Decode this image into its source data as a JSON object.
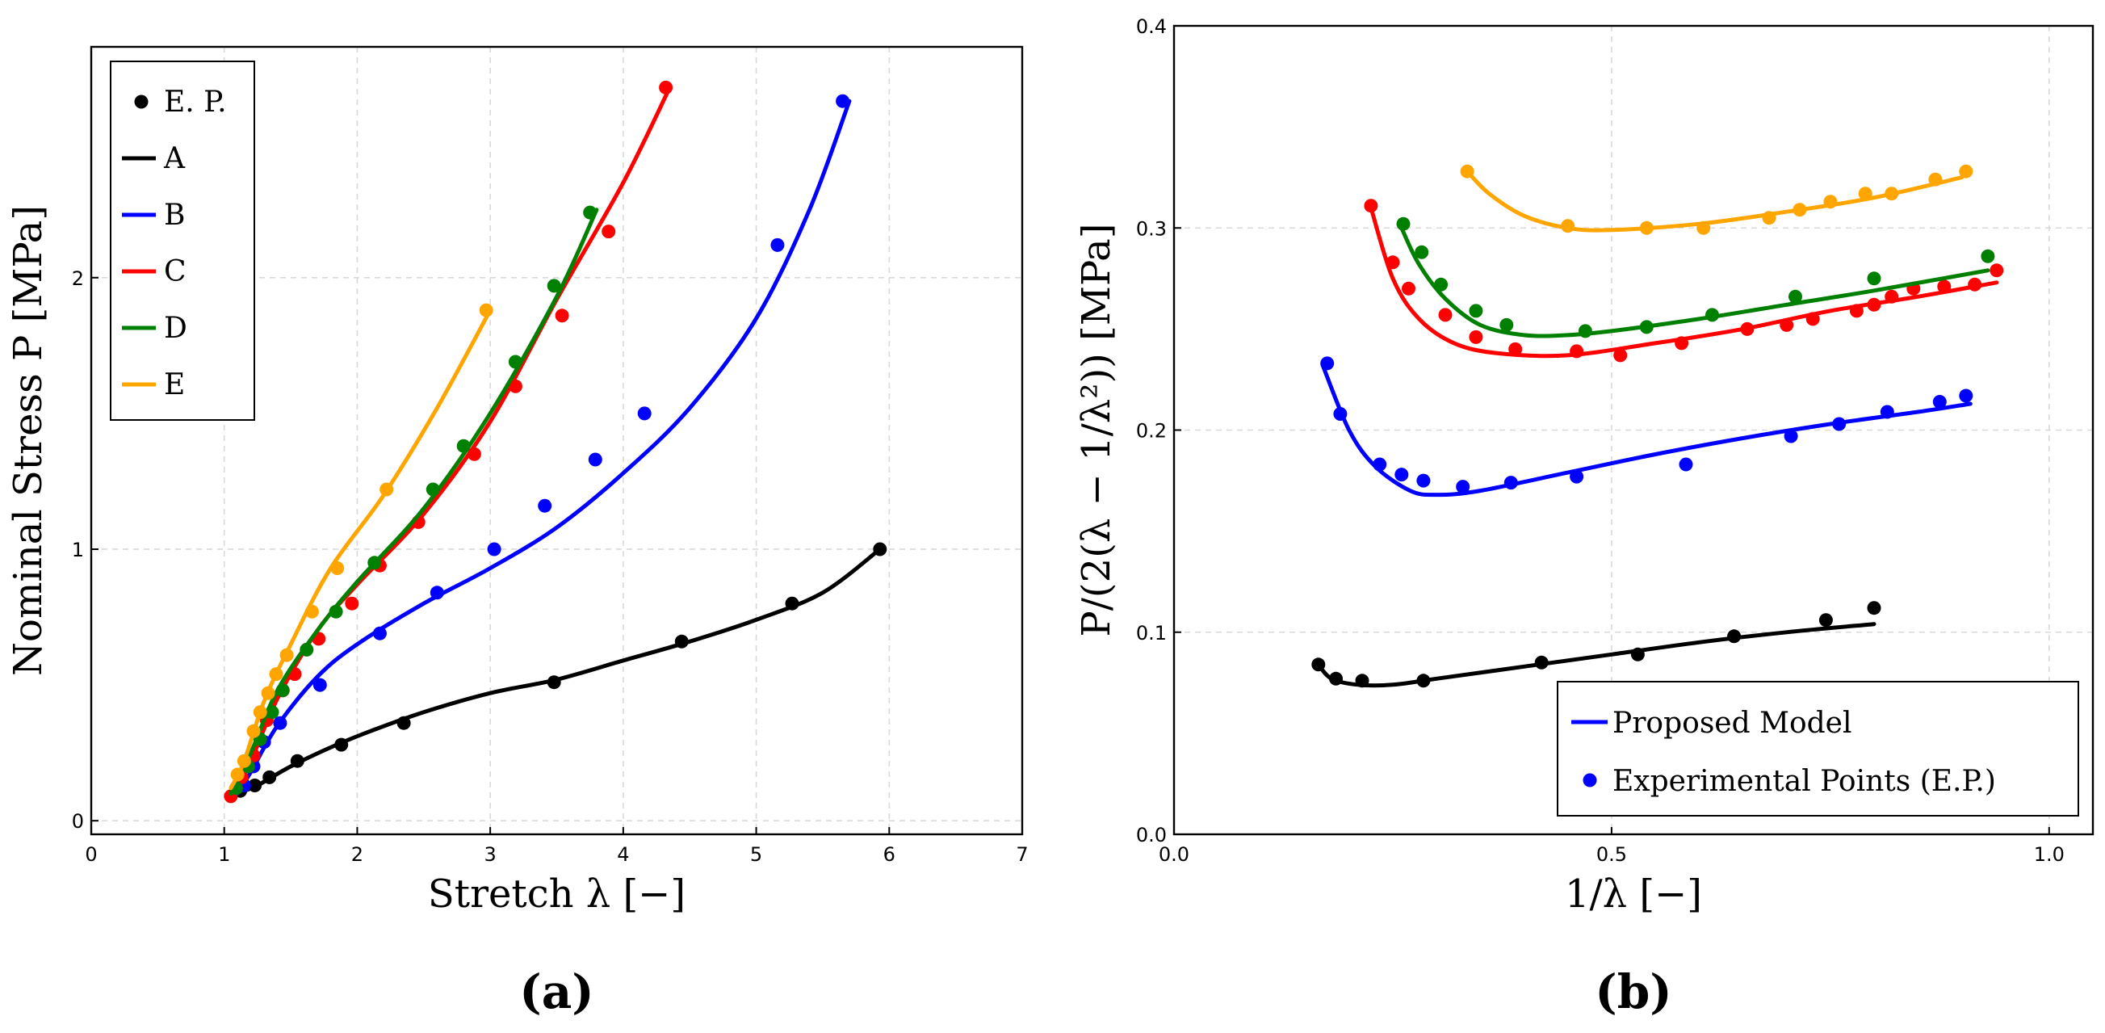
{
  "chart_data": [
    {
      "id": "a",
      "type": "line",
      "subtitle": "(a)",
      "xlabel": "Stretch λ [−]",
      "ylabel": "Nominal Stress P [MPa]",
      "xlim": [
        0,
        7
      ],
      "ylim": [
        -0.05,
        2.85
      ],
      "xticks": [
        0,
        1,
        2,
        3,
        4,
        5,
        6,
        7
      ],
      "xtick_labels": [
        "0",
        "1",
        "2",
        "3",
        "4",
        "5",
        "6",
        "7"
      ],
      "yticks": [
        0,
        1,
        2
      ],
      "ytick_labels": [
        "0",
        "1",
        "2"
      ],
      "grid": true,
      "legend_position": "top-left",
      "legend": [
        {
          "label": "E. P.",
          "kind": "marker",
          "color": "#000000"
        },
        {
          "label": "A",
          "kind": "line",
          "color": "#000000"
        },
        {
          "label": "B",
          "kind": "line",
          "color": "#0000ff"
        },
        {
          "label": "C",
          "kind": "line",
          "color": "#ff0000"
        },
        {
          "label": "D",
          "kind": "line",
          "color": "#008000"
        },
        {
          "label": "E",
          "kind": "line",
          "color": "#ffa500"
        }
      ],
      "series": [
        {
          "name": "A",
          "color": "#000000",
          "model": [
            [
              1.15,
              0.11
            ],
            [
              1.25,
              0.13
            ],
            [
              1.5,
              0.2
            ],
            [
              1.8,
              0.27
            ],
            [
              2.1,
              0.33
            ],
            [
              2.5,
              0.4
            ],
            [
              3,
              0.47
            ],
            [
              3.5,
              0.52
            ],
            [
              4,
              0.59
            ],
            [
              4.5,
              0.66
            ],
            [
              5,
              0.74
            ],
            [
              5.5,
              0.84
            ],
            [
              5.93,
              1.0
            ]
          ],
          "points": [
            [
              1.12,
              0.11
            ],
            [
              1.23,
              0.13
            ],
            [
              1.34,
              0.16
            ],
            [
              1.55,
              0.22
            ],
            [
              1.88,
              0.28
            ],
            [
              2.35,
              0.36
            ],
            [
              3.48,
              0.51
            ],
            [
              4.44,
              0.66
            ],
            [
              5.27,
              0.8
            ],
            [
              5.93,
              1.0
            ]
          ]
        },
        {
          "name": "B",
          "color": "#0000ff",
          "model": [
            [
              1.1,
              0.1
            ],
            [
              1.2,
              0.18
            ],
            [
              1.4,
              0.35
            ],
            [
              1.7,
              0.53
            ],
            [
              2,
              0.65
            ],
            [
              2.5,
              0.8
            ],
            [
              3,
              0.93
            ],
            [
              3.5,
              1.08
            ],
            [
              4,
              1.28
            ],
            [
              4.5,
              1.52
            ],
            [
              5,
              1.85
            ],
            [
              5.4,
              2.25
            ],
            [
              5.7,
              2.65
            ]
          ],
          "points": [
            [
              1.15,
              0.13
            ],
            [
              1.22,
              0.2
            ],
            [
              1.3,
              0.29
            ],
            [
              1.42,
              0.36
            ],
            [
              1.72,
              0.5
            ],
            [
              2.17,
              0.69
            ],
            [
              2.6,
              0.84
            ],
            [
              3.03,
              1.0
            ],
            [
              3.41,
              1.16
            ],
            [
              3.79,
              1.33
            ],
            [
              4.16,
              1.5
            ],
            [
              5.16,
              2.12
            ],
            [
              5.65,
              2.65
            ]
          ]
        },
        {
          "name": "C",
          "color": "#ff0000",
          "model": [
            [
              1.05,
              0.09
            ],
            [
              1.2,
              0.22
            ],
            [
              1.4,
              0.45
            ],
            [
              1.7,
              0.7
            ],
            [
              2,
              0.87
            ],
            [
              2.5,
              1.13
            ],
            [
              3,
              1.47
            ],
            [
              3.5,
              1.92
            ],
            [
              4,
              2.35
            ],
            [
              4.35,
              2.7
            ]
          ],
          "points": [
            [
              1.05,
              0.09
            ],
            [
              1.13,
              0.16
            ],
            [
              1.22,
              0.24
            ],
            [
              1.32,
              0.37
            ],
            [
              1.44,
              0.48
            ],
            [
              1.53,
              0.54
            ],
            [
              1.71,
              0.67
            ],
            [
              1.96,
              0.8
            ],
            [
              2.17,
              0.94
            ],
            [
              2.46,
              1.1
            ],
            [
              2.88,
              1.35
            ],
            [
              3.19,
              1.6
            ],
            [
              3.54,
              1.86
            ],
            [
              3.89,
              2.17
            ],
            [
              4.32,
              2.7
            ]
          ]
        },
        {
          "name": "D",
          "color": "#008000",
          "model": [
            [
              1.05,
              0.1
            ],
            [
              1.2,
              0.25
            ],
            [
              1.4,
              0.48
            ],
            [
              1.7,
              0.7
            ],
            [
              2,
              0.88
            ],
            [
              2.5,
              1.15
            ],
            [
              3,
              1.5
            ],
            [
              3.5,
              1.93
            ],
            [
              3.8,
              2.25
            ]
          ],
          "points": [
            [
              1.09,
              0.12
            ],
            [
              1.18,
              0.2
            ],
            [
              1.27,
              0.3
            ],
            [
              1.36,
              0.4
            ],
            [
              1.44,
              0.48
            ],
            [
              1.62,
              0.63
            ],
            [
              1.84,
              0.77
            ],
            [
              2.13,
              0.95
            ],
            [
              2.57,
              1.22
            ],
            [
              2.8,
              1.38
            ],
            [
              3.19,
              1.69
            ],
            [
              3.48,
              1.97
            ],
            [
              3.75,
              2.24
            ]
          ]
        },
        {
          "name": "E",
          "color": "#ffa500",
          "model": [
            [
              1.05,
              0.12
            ],
            [
              1.15,
              0.22
            ],
            [
              1.3,
              0.44
            ],
            [
              1.5,
              0.65
            ],
            [
              1.8,
              0.93
            ],
            [
              2.2,
              1.2
            ],
            [
              2.6,
              1.52
            ],
            [
              3,
              1.88
            ]
          ],
          "points": [
            [
              1.1,
              0.17
            ],
            [
              1.15,
              0.22
            ],
            [
              1.22,
              0.33
            ],
            [
              1.27,
              0.4
            ],
            [
              1.33,
              0.47
            ],
            [
              1.39,
              0.54
            ],
            [
              1.47,
              0.61
            ],
            [
              1.66,
              0.77
            ],
            [
              1.85,
              0.93
            ],
            [
              2.22,
              1.22
            ],
            [
              2.97,
              1.88
            ]
          ]
        }
      ]
    },
    {
      "id": "b",
      "type": "line",
      "subtitle": "(b)",
      "xlabel": "1/λ [−]",
      "ylabel": "P/(2(λ − 1/λ²)) [MPa]",
      "xlim": [
        0,
        1.05
      ],
      "ylim": [
        0,
        0.4
      ],
      "xticks": [
        0,
        0.5,
        1.0
      ],
      "xtick_labels": [
        "0.0",
        "0.5",
        "1.0"
      ],
      "yticks": [
        0,
        0.1,
        0.2,
        0.3,
        0.4
      ],
      "ytick_labels": [
        "0.0",
        "0.1",
        "0.2",
        "0.3",
        "0.4"
      ],
      "grid": true,
      "legend_position": "bottom-right",
      "legend": [
        {
          "label": "Proposed Model",
          "kind": "line",
          "color": "#0000ff"
        },
        {
          "label": "Experimental Points (E.P.)",
          "kind": "marker",
          "color": "#0000ff"
        }
      ],
      "series": [
        {
          "name": "A",
          "color": "#000000",
          "model": [
            [
              0.165,
              0.084
            ],
            [
              0.18,
              0.077
            ],
            [
              0.21,
              0.074
            ],
            [
              0.25,
              0.074
            ],
            [
              0.3,
              0.077
            ],
            [
              0.4,
              0.083
            ],
            [
              0.5,
              0.089
            ],
            [
              0.6,
              0.095
            ],
            [
              0.7,
              0.1
            ],
            [
              0.8,
              0.104
            ]
          ],
          "points": [
            [
              0.165,
              0.084
            ],
            [
              0.185,
              0.077
            ],
            [
              0.215,
              0.076
            ],
            [
              0.285,
              0.076
            ],
            [
              0.42,
              0.085
            ],
            [
              0.53,
              0.089
            ],
            [
              0.64,
              0.098
            ],
            [
              0.745,
              0.106
            ],
            [
              0.8,
              0.112
            ]
          ]
        },
        {
          "name": "B",
          "color": "#0000ff",
          "model": [
            [
              0.17,
              0.232
            ],
            [
              0.2,
              0.2
            ],
            [
              0.23,
              0.182
            ],
            [
              0.27,
              0.17
            ],
            [
              0.3,
              0.168
            ],
            [
              0.35,
              0.17
            ],
            [
              0.45,
              0.179
            ],
            [
              0.55,
              0.188
            ],
            [
              0.65,
              0.196
            ],
            [
              0.75,
              0.203
            ],
            [
              0.85,
              0.209
            ],
            [
              0.91,
              0.213
            ]
          ],
          "points": [
            [
              0.175,
              0.233
            ],
            [
              0.19,
              0.208
            ],
            [
              0.235,
              0.183
            ],
            [
              0.26,
              0.178
            ],
            [
              0.285,
              0.175
            ],
            [
              0.33,
              0.172
            ],
            [
              0.385,
              0.174
            ],
            [
              0.46,
              0.177
            ],
            [
              0.585,
              0.183
            ],
            [
              0.705,
              0.197
            ],
            [
              0.76,
              0.203
            ],
            [
              0.815,
              0.209
            ],
            [
              0.875,
              0.214
            ],
            [
              0.905,
              0.217
            ]
          ]
        },
        {
          "name": "C",
          "color": "#ff0000",
          "model": [
            [
              0.225,
              0.31
            ],
            [
              0.25,
              0.275
            ],
            [
              0.28,
              0.255
            ],
            [
              0.32,
              0.243
            ],
            [
              0.37,
              0.238
            ],
            [
              0.45,
              0.237
            ],
            [
              0.55,
              0.243
            ],
            [
              0.65,
              0.25
            ],
            [
              0.75,
              0.259
            ],
            [
              0.85,
              0.266
            ],
            [
              0.94,
              0.273
            ]
          ],
          "points": [
            [
              0.225,
              0.311
            ],
            [
              0.25,
              0.283
            ],
            [
              0.268,
              0.27
            ],
            [
              0.31,
              0.257
            ],
            [
              0.345,
              0.246
            ],
            [
              0.39,
              0.24
            ],
            [
              0.46,
              0.239
            ],
            [
              0.51,
              0.237
            ],
            [
              0.58,
              0.243
            ],
            [
              0.655,
              0.25
            ],
            [
              0.7,
              0.252
            ],
            [
              0.73,
              0.255
            ],
            [
              0.78,
              0.259
            ],
            [
              0.8,
              0.262
            ],
            [
              0.82,
              0.266
            ],
            [
              0.845,
              0.27
            ],
            [
              0.88,
              0.271
            ],
            [
              0.915,
              0.272
            ],
            [
              0.94,
              0.279
            ]
          ]
        },
        {
          "name": "D",
          "color": "#008000",
          "model": [
            [
              0.26,
              0.3
            ],
            [
              0.28,
              0.282
            ],
            [
              0.31,
              0.265
            ],
            [
              0.35,
              0.252
            ],
            [
              0.4,
              0.247
            ],
            [
              0.45,
              0.247
            ],
            [
              0.5,
              0.249
            ],
            [
              0.6,
              0.255
            ],
            [
              0.7,
              0.262
            ],
            [
              0.8,
              0.269
            ],
            [
              0.93,
              0.279
            ]
          ],
          "points": [
            [
              0.262,
              0.302
            ],
            [
              0.283,
              0.288
            ],
            [
              0.305,
              0.272
            ],
            [
              0.345,
              0.259
            ],
            [
              0.38,
              0.252
            ],
            [
              0.47,
              0.249
            ],
            [
              0.54,
              0.251
            ],
            [
              0.615,
              0.257
            ],
            [
              0.71,
              0.266
            ],
            [
              0.8,
              0.275
            ],
            [
              0.93,
              0.286
            ]
          ]
        },
        {
          "name": "E",
          "color": "#ffa500",
          "model": [
            [
              0.335,
              0.328
            ],
            [
              0.36,
              0.317
            ],
            [
              0.4,
              0.306
            ],
            [
              0.45,
              0.3
            ],
            [
              0.5,
              0.299
            ],
            [
              0.6,
              0.302
            ],
            [
              0.7,
              0.308
            ],
            [
              0.8,
              0.315
            ],
            [
              0.9,
              0.325
            ]
          ],
          "points": [
            [
              0.335,
              0.328
            ],
            [
              0.45,
              0.301
            ],
            [
              0.54,
              0.3
            ],
            [
              0.605,
              0.3
            ],
            [
              0.68,
              0.305
            ],
            [
              0.715,
              0.309
            ],
            [
              0.75,
              0.313
            ],
            [
              0.79,
              0.317
            ],
            [
              0.82,
              0.317
            ],
            [
              0.87,
              0.324
            ],
            [
              0.905,
              0.328
            ]
          ]
        }
      ]
    }
  ]
}
